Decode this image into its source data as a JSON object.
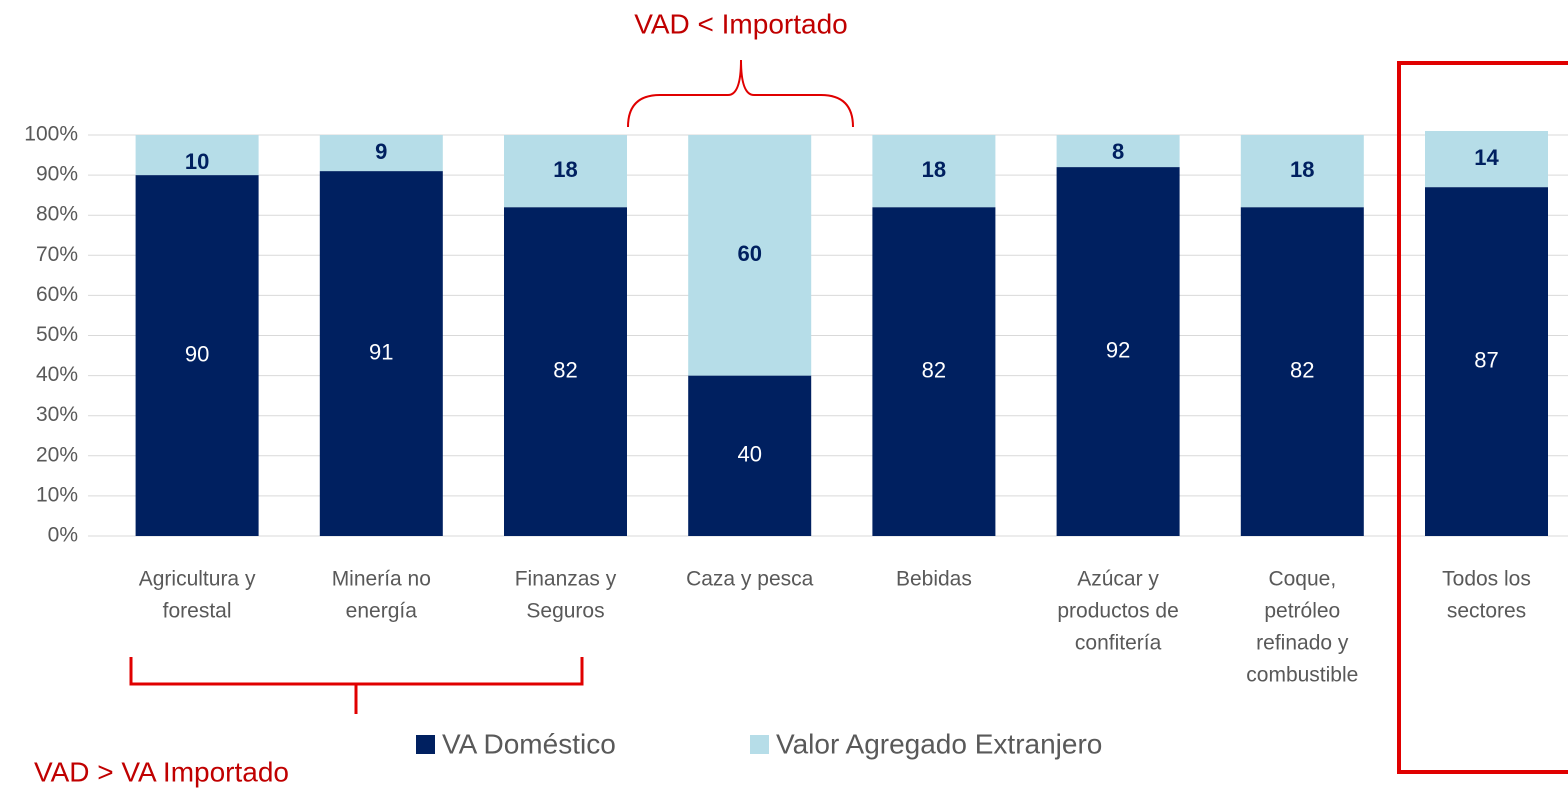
{
  "chart_data": {
    "type": "stacked_bar",
    "categories": [
      [
        "Agricultura y",
        "forestal"
      ],
      [
        "Minería no",
        "energía"
      ],
      [
        "Finanzas y",
        "Seguros"
      ],
      [
        "Caza y pesca"
      ],
      [
        "Bebidas"
      ],
      [
        "Azúcar y",
        "productos de",
        "confitería"
      ],
      [
        "Coque,",
        "petróleo",
        "refinado y",
        "combustible"
      ],
      [
        "Todos los",
        "sectores"
      ]
    ],
    "series": [
      {
        "name": "VA Doméstico",
        "color": "#002060",
        "values": [
          90,
          91,
          82,
          40,
          82,
          92,
          82,
          87
        ]
      },
      {
        "name": "Valor Agregado Extranjero",
        "color": "#b6dde8",
        "values": [
          10,
          9,
          18,
          60,
          18,
          8,
          18,
          14
        ]
      }
    ],
    "ylim": [
      0,
      100
    ],
    "yticks": [
      {
        "value": 0,
        "label": "0%"
      },
      {
        "value": 10,
        "label": "10%"
      },
      {
        "value": 20,
        "label": "20%"
      },
      {
        "value": 30,
        "label": "30%"
      },
      {
        "value": 40,
        "label": "40%"
      },
      {
        "value": 50,
        "label": "50%"
      },
      {
        "value": 60,
        "label": "60%"
      },
      {
        "value": 70,
        "label": "70%"
      },
      {
        "value": 80,
        "label": "80%"
      },
      {
        "value": 90,
        "label": "90%"
      },
      {
        "value": 100,
        "label": "100%"
      }
    ],
    "grid": true,
    "annotations": [
      "VAD < Importado",
      "VAD > VA Importado"
    ]
  }
}
